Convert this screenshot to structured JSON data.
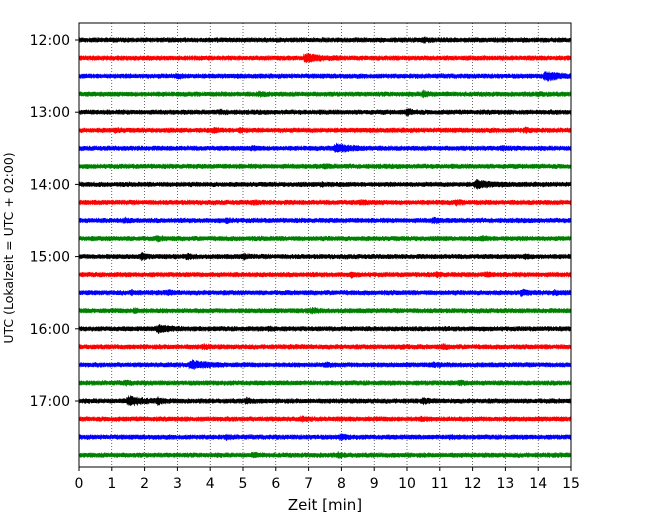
{
  "chart_data": {
    "type": "line",
    "title": "",
    "xlabel": "Zeit  [min]",
    "ylabel": "UTC (Lokalzeit = UTC + 02:00)",
    "xlim": [
      0,
      15
    ],
    "x_ticks": [
      0,
      1,
      2,
      3,
      4,
      5,
      6,
      7,
      8,
      9,
      10,
      11,
      12,
      13,
      14,
      15
    ],
    "y_tick_labels": [
      "12:00",
      "13:00",
      "14:00",
      "15:00",
      "16:00",
      "17:00"
    ],
    "y_tick_rows": [
      0,
      4,
      8,
      12,
      16,
      20
    ],
    "grid": "vertical dotted at each minute",
    "row_interval_min": 15,
    "row_colors": [
      "#000000",
      "#ff0000",
      "#0000ff",
      "#008000"
    ],
    "rows": [
      {
        "start": "12:00",
        "events": [
          [
            10.5,
            0.45
          ]
        ]
      },
      {
        "start": "12:15",
        "events": [
          [
            6.9,
            0.8
          ]
        ]
      },
      {
        "start": "12:30",
        "events": [
          [
            3.0,
            0.3
          ],
          [
            14.2,
            1.0
          ]
        ]
      },
      {
        "start": "12:45",
        "events": [
          [
            5.5,
            0.35
          ],
          [
            10.5,
            0.6
          ],
          [
            14.0,
            0.3
          ]
        ]
      },
      {
        "start": "13:00",
        "events": [
          [
            4.3,
            0.3
          ],
          [
            10.0,
            0.6
          ]
        ]
      },
      {
        "start": "13:15",
        "events": [
          [
            1.1,
            0.3
          ],
          [
            4.1,
            0.35
          ],
          [
            4.9,
            0.35
          ],
          [
            13.6,
            0.35
          ]
        ]
      },
      {
        "start": "13:30",
        "events": [
          [
            5.3,
            0.3
          ],
          [
            7.8,
            0.9
          ],
          [
            12.9,
            0.35
          ]
        ]
      },
      {
        "start": "13:45",
        "events": [
          [
            7.5,
            0.3
          ]
        ]
      },
      {
        "start": "14:00",
        "events": [
          [
            7.4,
            0.3
          ],
          [
            12.1,
            0.8
          ]
        ]
      },
      {
        "start": "14:15",
        "events": [
          [
            5.3,
            0.3
          ],
          [
            8.6,
            0.35
          ],
          [
            11.5,
            0.35
          ]
        ]
      },
      {
        "start": "14:30",
        "events": [
          [
            1.4,
            0.3
          ],
          [
            4.5,
            0.35
          ],
          [
            10.8,
            0.45
          ]
        ]
      },
      {
        "start": "14:45",
        "events": [
          [
            2.4,
            0.35
          ],
          [
            12.3,
            0.3
          ]
        ]
      },
      {
        "start": "15:00",
        "events": [
          [
            1.9,
            0.55
          ],
          [
            3.3,
            0.45
          ],
          [
            5.0,
            0.45
          ],
          [
            13.6,
            0.3
          ]
        ]
      },
      {
        "start": "15:15",
        "events": [
          [
            8.3,
            0.3
          ],
          [
            10.9,
            0.3
          ],
          [
            12.4,
            0.3
          ]
        ]
      },
      {
        "start": "15:30",
        "events": [
          [
            1.6,
            0.3
          ],
          [
            2.7,
            0.3
          ],
          [
            13.5,
            0.6
          ],
          [
            14.5,
            0.35
          ]
        ]
      },
      {
        "start": "15:45",
        "events": [
          [
            1.7,
            0.35
          ],
          [
            7.1,
            0.45
          ]
        ]
      },
      {
        "start": "16:00",
        "events": [
          [
            2.4,
            0.7
          ],
          [
            5.8,
            0.3
          ]
        ]
      },
      {
        "start": "16:15",
        "events": [
          [
            3.8,
            0.35
          ],
          [
            9.8,
            0.3
          ],
          [
            11.1,
            0.35
          ]
        ]
      },
      {
        "start": "16:30",
        "events": [
          [
            3.4,
            0.9
          ],
          [
            7.5,
            0.35
          ],
          [
            10.8,
            0.3
          ]
        ]
      },
      {
        "start": "16:45",
        "events": [
          [
            1.4,
            0.3
          ],
          [
            11.6,
            0.3
          ]
        ]
      },
      {
        "start": "17:00",
        "events": [
          [
            1.5,
            1.0
          ],
          [
            2.4,
            0.5
          ],
          [
            5.1,
            0.45
          ],
          [
            10.5,
            0.4
          ]
        ]
      },
      {
        "start": "17:15",
        "events": [
          [
            6.8,
            0.3
          ],
          [
            10.4,
            0.3
          ]
        ]
      },
      {
        "start": "17:30",
        "events": [
          [
            4.5,
            0.3
          ],
          [
            8.0,
            0.55
          ],
          [
            11.3,
            0.3
          ]
        ]
      },
      {
        "start": "17:45",
        "events": [
          [
            5.3,
            0.3
          ],
          [
            7.9,
            0.35
          ]
        ]
      }
    ]
  }
}
